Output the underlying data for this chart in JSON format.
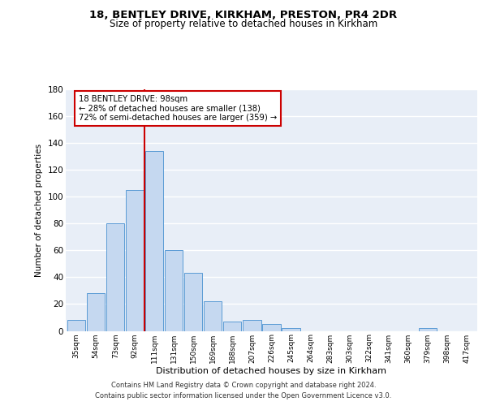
{
  "title": "18, BENTLEY DRIVE, KIRKHAM, PRESTON, PR4 2DR",
  "subtitle": "Size of property relative to detached houses in Kirkham",
  "xlabel": "Distribution of detached houses by size in Kirkham",
  "ylabel": "Number of detached properties",
  "bar_labels": [
    "35sqm",
    "54sqm",
    "73sqm",
    "92sqm",
    "111sqm",
    "131sqm",
    "150sqm",
    "169sqm",
    "188sqm",
    "207sqm",
    "226sqm",
    "245sqm",
    "264sqm",
    "283sqm",
    "303sqm",
    "322sqm",
    "341sqm",
    "360sqm",
    "379sqm",
    "398sqm",
    "417sqm"
  ],
  "bar_values": [
    8,
    28,
    80,
    105,
    134,
    60,
    43,
    22,
    7,
    8,
    5,
    2,
    0,
    0,
    0,
    0,
    0,
    0,
    2,
    0,
    0
  ],
  "bar_color": "#c5d8f0",
  "bar_edge_color": "#5b9bd5",
  "background_color": "#e8eef7",
  "grid_color": "#ffffff",
  "vline_x": 3.5,
  "vline_color": "#cc0000",
  "annotation_line1": "18 BENTLEY DRIVE: 98sqm",
  "annotation_line2": "← 28% of detached houses are smaller (138)",
  "annotation_line3": "72% of semi-detached houses are larger (359) →",
  "annotation_box_edge": "#cc0000",
  "ylim": [
    0,
    180
  ],
  "yticks": [
    0,
    20,
    40,
    60,
    80,
    100,
    120,
    140,
    160,
    180
  ],
  "footer_line1": "Contains HM Land Registry data © Crown copyright and database right 2024.",
  "footer_line2": "Contains public sector information licensed under the Open Government Licence v3.0."
}
